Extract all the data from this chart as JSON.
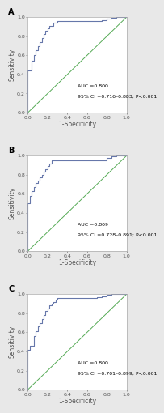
{
  "panels": [
    {
      "label": "A",
      "auc_text": "AUC =0.800",
      "ci_text": "95% CI =0.716–0.883; P<0.001",
      "roc_x": [
        0.0,
        0.0,
        0.04,
        0.04,
        0.06,
        0.06,
        0.08,
        0.08,
        0.1,
        0.1,
        0.12,
        0.12,
        0.14,
        0.14,
        0.16,
        0.16,
        0.18,
        0.18,
        0.2,
        0.2,
        0.22,
        0.22,
        0.26,
        0.26,
        0.3,
        0.3,
        0.75,
        0.75,
        0.8,
        0.8,
        0.85,
        0.85,
        0.9,
        0.9,
        1.0,
        1.0
      ],
      "roc_y": [
        0.0,
        0.44,
        0.44,
        0.54,
        0.54,
        0.6,
        0.6,
        0.65,
        0.65,
        0.7,
        0.7,
        0.74,
        0.74,
        0.78,
        0.78,
        0.82,
        0.82,
        0.86,
        0.86,
        0.88,
        0.88,
        0.91,
        0.91,
        0.94,
        0.94,
        0.96,
        0.96,
        0.97,
        0.97,
        0.98,
        0.98,
        0.99,
        0.99,
        1.0,
        1.0,
        1.0
      ]
    },
    {
      "label": "B",
      "auc_text": "AUC =0.809",
      "ci_text": "95% CI =0.728–0.891; P<0.001",
      "roc_x": [
        0.0,
        0.0,
        0.02,
        0.02,
        0.04,
        0.04,
        0.06,
        0.06,
        0.08,
        0.08,
        0.1,
        0.1,
        0.12,
        0.12,
        0.14,
        0.14,
        0.16,
        0.16,
        0.18,
        0.18,
        0.2,
        0.2,
        0.22,
        0.22,
        0.24,
        0.24,
        0.8,
        0.8,
        0.85,
        0.85,
        0.9,
        0.9,
        1.0,
        1.0
      ],
      "roc_y": [
        0.0,
        0.5,
        0.5,
        0.58,
        0.58,
        0.63,
        0.63,
        0.67,
        0.67,
        0.71,
        0.71,
        0.74,
        0.74,
        0.77,
        0.77,
        0.8,
        0.8,
        0.83,
        0.83,
        0.86,
        0.86,
        0.89,
        0.89,
        0.92,
        0.92,
        0.95,
        0.95,
        0.98,
        0.98,
        0.99,
        0.99,
        1.0,
        1.0,
        1.0
      ]
    },
    {
      "label": "C",
      "auc_text": "AUC =0.800",
      "ci_text": "95% CI =0.701–0.899; P<0.001",
      "roc_x": [
        0.0,
        0.0,
        0.02,
        0.02,
        0.06,
        0.06,
        0.08,
        0.08,
        0.1,
        0.1,
        0.12,
        0.12,
        0.14,
        0.14,
        0.16,
        0.16,
        0.18,
        0.18,
        0.2,
        0.2,
        0.22,
        0.22,
        0.24,
        0.24,
        0.26,
        0.26,
        0.28,
        0.28,
        0.3,
        0.3,
        0.7,
        0.7,
        0.75,
        0.75,
        0.8,
        0.8,
        0.85,
        0.85,
        1.0,
        1.0
      ],
      "roc_y": [
        0.0,
        0.42,
        0.42,
        0.46,
        0.46,
        0.56,
        0.56,
        0.61,
        0.61,
        0.66,
        0.66,
        0.7,
        0.7,
        0.74,
        0.74,
        0.78,
        0.78,
        0.82,
        0.82,
        0.85,
        0.85,
        0.88,
        0.88,
        0.9,
        0.9,
        0.92,
        0.92,
        0.94,
        0.94,
        0.96,
        0.96,
        0.97,
        0.97,
        0.98,
        0.98,
        0.99,
        0.99,
        1.0,
        1.0,
        1.0
      ]
    }
  ],
  "roc_line_color": "#6677aa",
  "diag_line_color": "#55aa55",
  "xlabel": "1-Specificity",
  "ylabel": "Sensitivity",
  "xlim": [
    0.0,
    1.0
  ],
  "ylim": [
    0.0,
    1.0
  ],
  "xticks": [
    0.0,
    0.2,
    0.4,
    0.6,
    0.8,
    1.0
  ],
  "yticks": [
    0.0,
    0.2,
    0.4,
    0.6,
    0.8,
    1.0
  ],
  "tick_fontsize": 4.5,
  "label_fontsize": 5.5,
  "annot_fontsize": 4.5,
  "panel_label_fontsize": 7,
  "background_color": "#e8e8e8"
}
